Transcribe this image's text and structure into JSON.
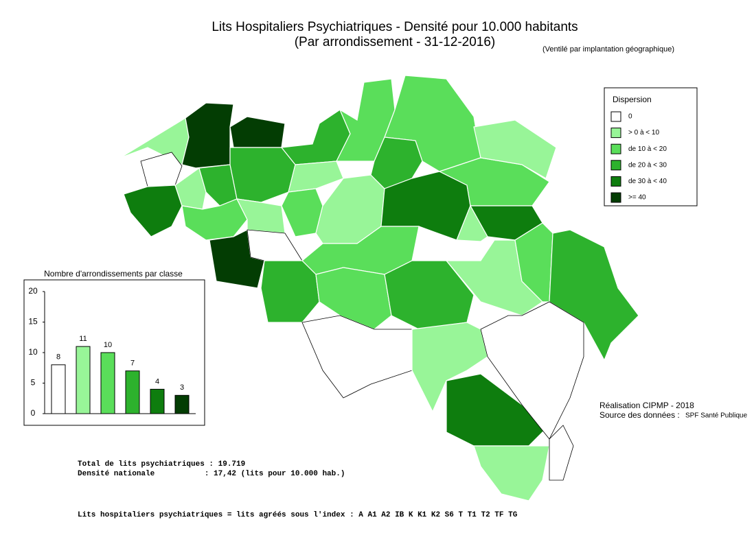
{
  "map": {
    "title": "Lits Hospitaliers Psychiatriques  - Densité pour 10.000 habitants",
    "subtitle": "(Par arrondissement - 31-12-2016)",
    "note": "(Ventilé par implantation géographique)",
    "legend": {
      "title": "Dispersion",
      "items": [
        {
          "label": "0",
          "color": "#ffffff"
        },
        {
          "label": "> 0 à < 10",
          "color": "#98f598"
        },
        {
          "label": "de 10 à < 20",
          "color": "#5ade5a"
        },
        {
          "label": "de 20 à < 30",
          "color": "#2db22d"
        },
        {
          "label": "de 30 à < 40",
          "color": "#0e7d0e"
        },
        {
          "label": ">= 40",
          "color": "#033d03"
        }
      ]
    },
    "credits": {
      "made_by": "Réalisation CIPMP - 2018",
      "source_label": "Source des données :",
      "source": "SPF Santé Publique"
    },
    "stats": [
      "Total de lits psychiatriques : 19.719",
      "Densité nationale           : 17,42 (lits pour 10.000 hab.)"
    ],
    "footer": "Lits hospitaliers psychiatriques = lits agréés sous l'index : A A1 A2 IB K K1 K2 S6 T T1 T2 TF TG"
  },
  "chart_data": {
    "type": "bar",
    "title": "Nombre d'arrondissements par classe",
    "values": [
      8,
      11,
      10,
      7,
      4,
      3
    ],
    "colors": [
      "#ffffff",
      "#98f598",
      "#5ade5a",
      "#2db22d",
      "#0e7d0e",
      "#033d03"
    ],
    "ylim": [
      0,
      20
    ],
    "yticks": [
      0,
      5,
      10,
      15,
      20
    ]
  }
}
